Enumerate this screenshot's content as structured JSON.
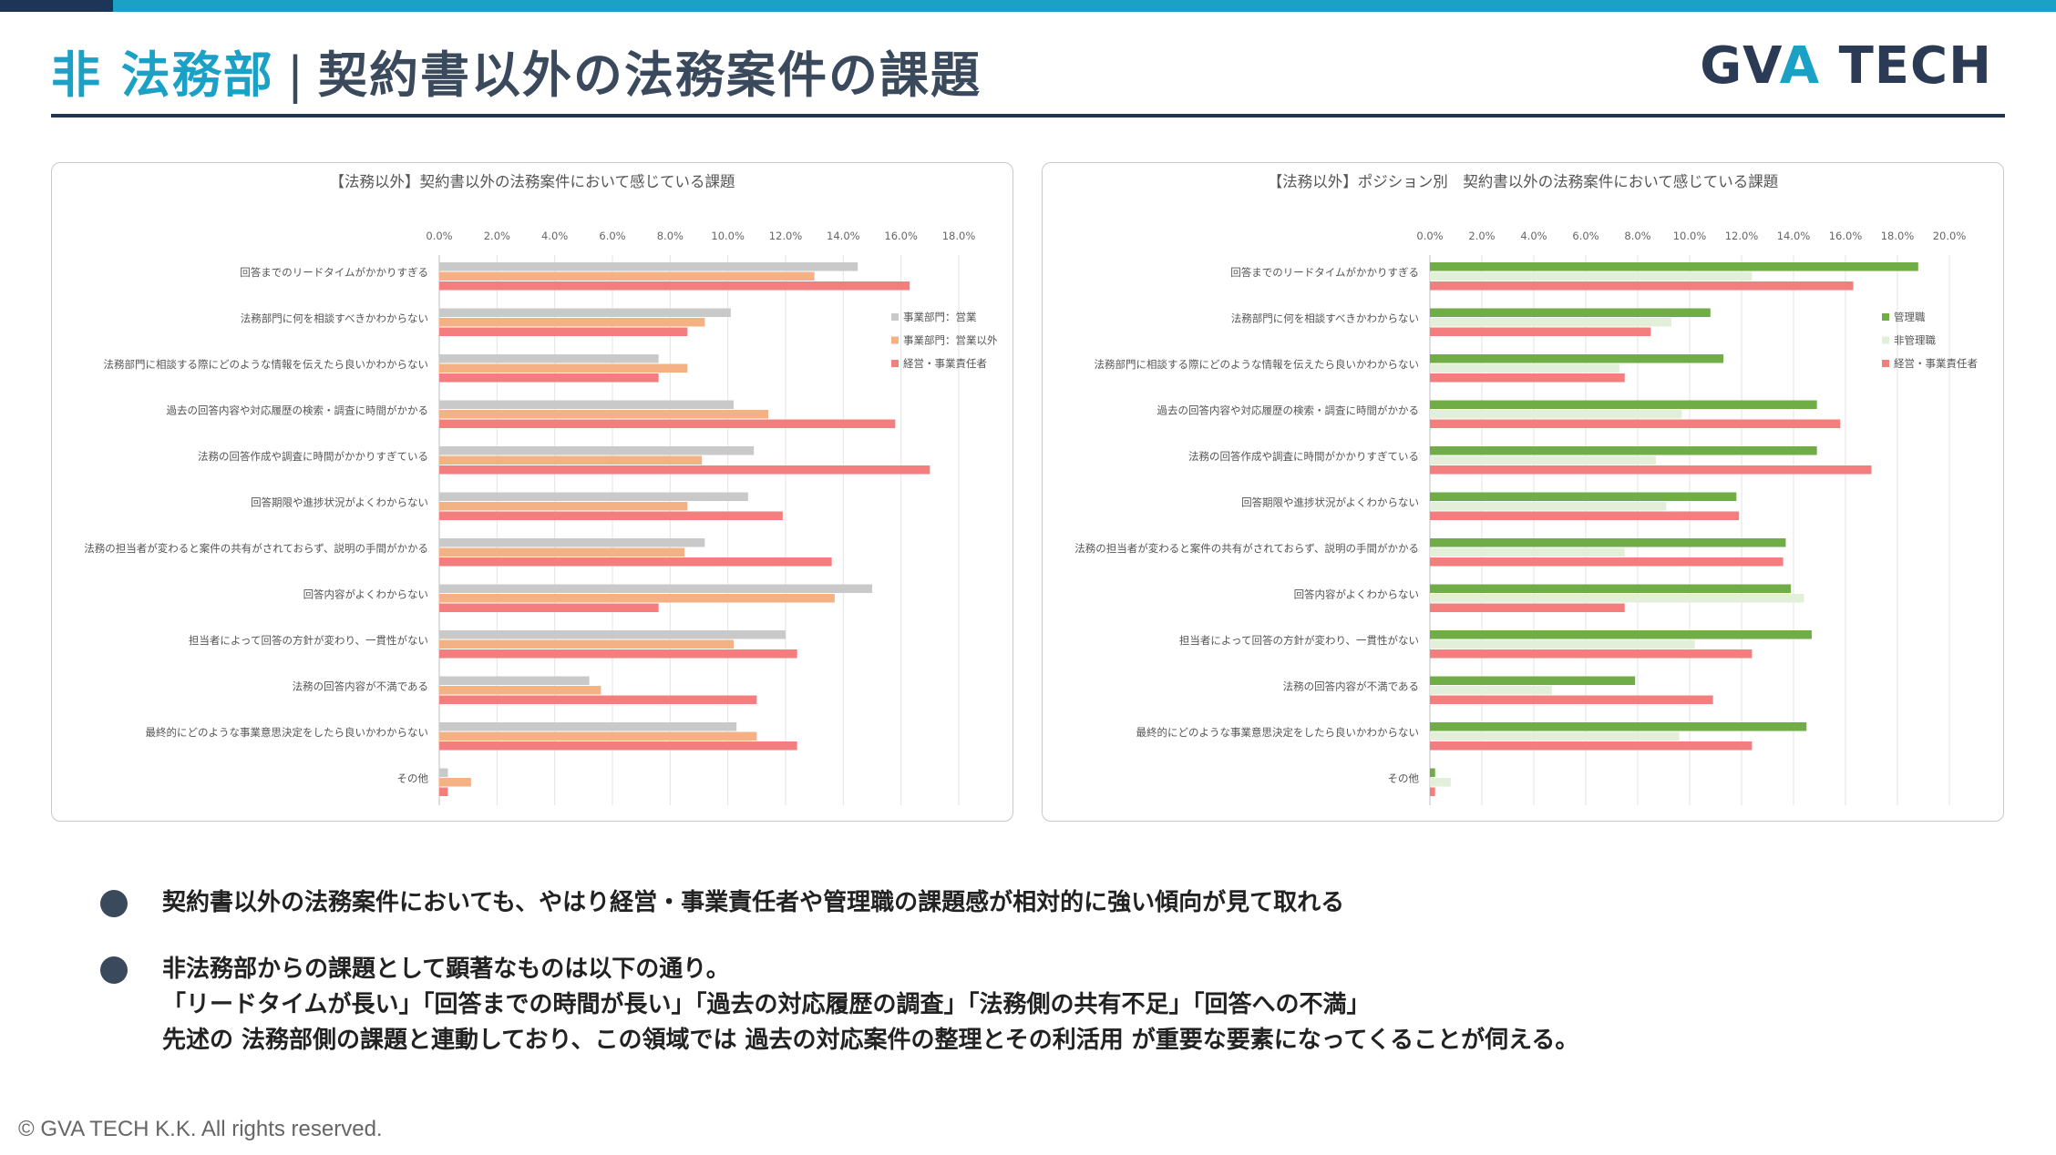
{
  "header": {
    "accent_title": "非 法務部",
    "separator": "|",
    "main_title": "契約書以外の法務案件の課題",
    "logo_part1": "GV",
    "logo_part2": "A",
    "logo_part3": " TECH"
  },
  "colors": {
    "accent": "#1ba0c6",
    "navy": "#1d3557",
    "gray_series": "#c9c9c9",
    "orange_series": "#f4b183",
    "red_series": "#f47d7d",
    "green_series": "#70ad47",
    "light_green_series": "#e2efd9"
  },
  "chart_data": [
    {
      "type": "bar",
      "orientation": "horizontal",
      "title": "【法務以外】契約書以外の法務案件において感じている課題",
      "categories": [
        "回答までのリードタイムがかかりすぎる",
        "法務部門に何を相談すべきかわからない",
        "法務部門に相談する際にどのような情報を伝えたら良いかわからない",
        "過去の回答内容や対応履歴の検索・調査に時間がかかる",
        "法務の回答作成や調査に時間がかかりすぎている",
        "回答期限や進捗状況がよくわからない",
        "法務の担当者が変わると案件の共有がされておらず、説明の手間がかかる",
        "回答内容がよくわからない",
        "担当者によって回答の方針が変わり、一貫性がない",
        "法務の回答内容が不満である",
        "最終的にどのような事業意思決定をしたら良いかわからない",
        "その他"
      ],
      "series": [
        {
          "name": "事業部門：営業",
          "color": "#c9c9c9",
          "values": [
            14.5,
            10.1,
            7.6,
            10.2,
            10.9,
            10.7,
            9.2,
            15.0,
            12.0,
            5.2,
            10.3,
            0.3
          ]
        },
        {
          "name": "事業部門：営業以外",
          "color": "#f4b183",
          "values": [
            13.0,
            9.2,
            8.6,
            11.4,
            9.1,
            8.6,
            8.5,
            13.7,
            10.2,
            5.6,
            11.0,
            1.1
          ]
        },
        {
          "name": "経営・事業責任者",
          "color": "#f47d7d",
          "values": [
            16.3,
            8.6,
            7.6,
            15.8,
            17.0,
            11.9,
            13.6,
            7.6,
            12.4,
            11.0,
            12.4,
            0.3
          ]
        }
      ],
      "xlim": [
        0,
        18
      ],
      "ticks": [
        "0.0%",
        "2.0%",
        "4.0%",
        "6.0%",
        "8.0%",
        "10.0%",
        "12.0%",
        "14.0%",
        "16.0%",
        "18.0%"
      ],
      "legend_position": "right"
    },
    {
      "type": "bar",
      "orientation": "horizontal",
      "title": "【法務以外】ポジション別　契約書以外の法務案件において感じている課題",
      "categories": [
        "回答までのリードタイムがかかりすぎる",
        "法務部門に何を相談すべきかわからない",
        "法務部門に相談する際にどのような情報を伝えたら良いかわからない",
        "過去の回答内容や対応履歴の検索・調査に時間がかかる",
        "法務の回答作成や調査に時間がかかりすぎている",
        "回答期限や進捗状況がよくわからない",
        "法務の担当者が変わると案件の共有がされておらず、説明の手間がかかる",
        "回答内容がよくわからない",
        "担当者によって回答の方針が変わり、一貫性がない",
        "法務の回答内容が不満である",
        "最終的にどのような事業意思決定をしたら良いかわからない",
        "その他"
      ],
      "series": [
        {
          "name": "管理職",
          "color": "#70ad47",
          "values": [
            18.8,
            10.8,
            11.3,
            14.9,
            14.9,
            11.8,
            13.7,
            13.9,
            14.7,
            7.9,
            14.5,
            0.2
          ]
        },
        {
          "name": "非管理職",
          "color": "#e2efd9",
          "values": [
            12.4,
            9.3,
            7.3,
            9.7,
            8.7,
            9.1,
            7.5,
            14.4,
            10.2,
            4.7,
            9.6,
            0.8
          ]
        },
        {
          "name": "経営・事業責任者",
          "color": "#f47d7d",
          "values": [
            16.3,
            8.5,
            7.5,
            15.8,
            17.0,
            11.9,
            13.6,
            7.5,
            12.4,
            10.9,
            12.4,
            0.2
          ]
        }
      ],
      "xlim": [
        0,
        20
      ],
      "ticks": [
        "0.0%",
        "2.0%",
        "4.0%",
        "6.0%",
        "8.0%",
        "10.0%",
        "12.0%",
        "14.0%",
        "16.0%",
        "18.0%",
        "20.0%"
      ],
      "legend_position": "right"
    }
  ],
  "bullets": [
    {
      "lines": [
        "契約書以外の法務案件においても、やはり経営・事業責任者や管理職の課題感が相対的に強い傾向が見て取れる"
      ]
    },
    {
      "lines": [
        "非法務部からの課題として顕著なものは以下の通り。",
        "「リードタイムが長い」「回答までの時間が長い」「過去の対応履歴の調査」「法務側の共有不足」「回答への不満」",
        "先述の 法務部側の課題と連動しており、この領域では 過去の対応案件の整理とその利活用 が重要な要素になってくることが伺える。"
      ]
    }
  ],
  "footer": {
    "copyright": "© GVA TECH K.K. All rights reserved."
  }
}
